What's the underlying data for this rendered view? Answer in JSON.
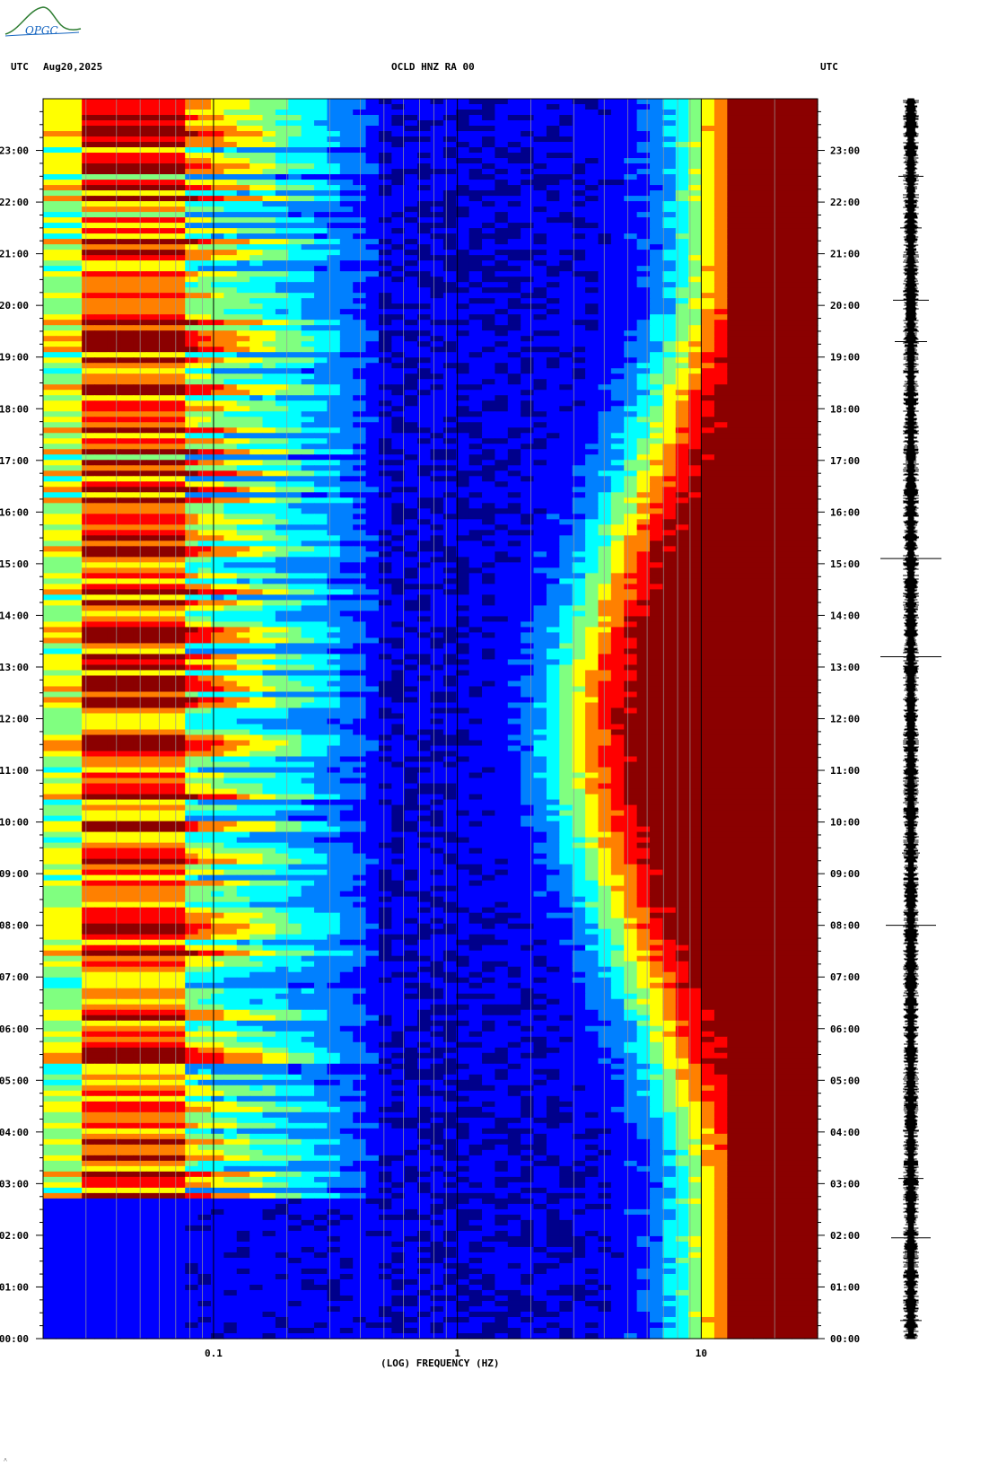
{
  "header": {
    "left_tz": "UTC",
    "date": "Aug20,2025",
    "station": "OCLD HNZ RA 00",
    "right_tz": "UTC"
  },
  "logo": {
    "text": "OPGC",
    "color": "#2e7d32",
    "accent": "#1565c0"
  },
  "chart_data": {
    "type": "heatmap",
    "title": "OCLD HNZ RA 00",
    "xlabel": "(LOG) FREQUENCY (HZ)",
    "ylabel": "UTC",
    "x_scale": "log",
    "xlim": [
      0.02,
      30
    ],
    "x_ticks": [
      {
        "value": 0.1,
        "label": "0.1"
      },
      {
        "value": 1,
        "label": "1"
      },
      {
        "value": 10,
        "label": "10"
      }
    ],
    "ylim_hours": [
      0,
      24
    ],
    "y_ticks": [
      "00:00",
      "01:00",
      "02:00",
      "03:00",
      "04:00",
      "05:00",
      "06:00",
      "07:00",
      "08:00",
      "09:00",
      "10:00",
      "11:00",
      "12:00",
      "13:00",
      "14:00",
      "15:00",
      "16:00",
      "17:00",
      "18:00",
      "19:00",
      "20:00",
      "21:00",
      "22:00",
      "23:00"
    ],
    "colormap": [
      "#00008b",
      "#0000ff",
      "#0080ff",
      "#00ffff",
      "#80ff80",
      "#ffff00",
      "#ff8000",
      "#ff0000",
      "#8b0000"
    ],
    "features": {
      "microseism_band_hz": [
        0.025,
        0.08
      ],
      "active_microseism_hours": [
        2.7,
        24
      ],
      "quiet_hours": [
        0,
        2.7
      ],
      "high_freq_saturation_hz": 10,
      "daytime_cultural_noise_hours": [
        3.3,
        20.3
      ]
    },
    "seismogram_trace": "HNZ amplitude vs time"
  }
}
